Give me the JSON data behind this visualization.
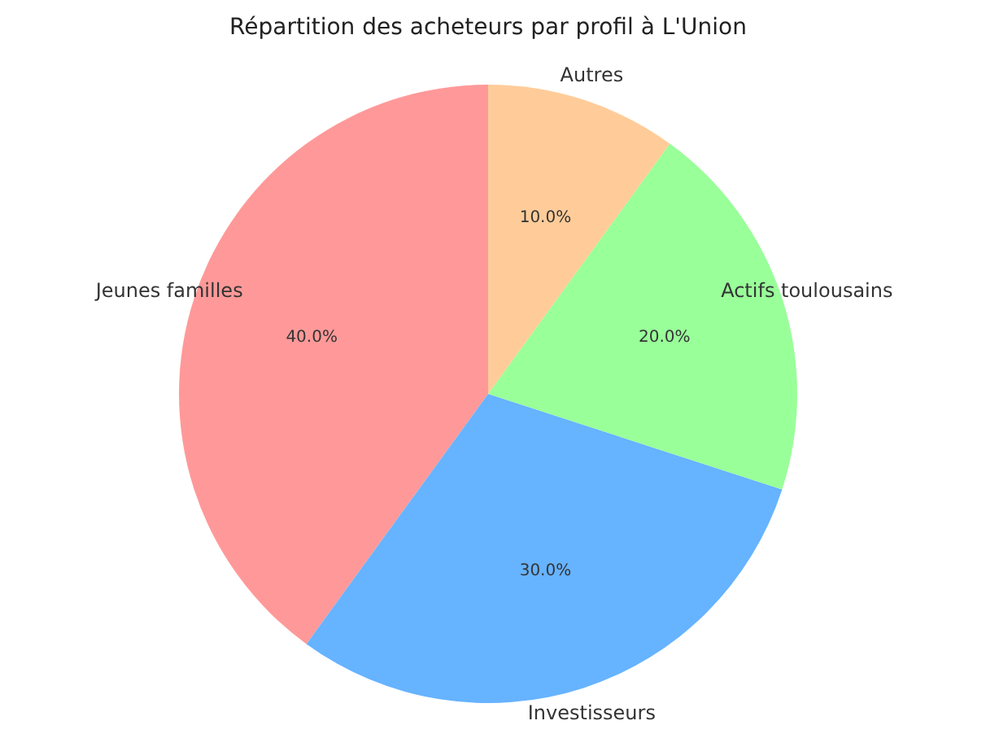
{
  "chart_data": {
    "type": "pie",
    "title": "Répartition des acheteurs par profil à L'Union",
    "categories": [
      "Jeunes familles",
      "Investisseurs",
      "Actifs toulousains",
      "Autres"
    ],
    "values": [
      40,
      30,
      20,
      10
    ],
    "colors": [
      "#ff9999",
      "#66b3ff",
      "#99ff99",
      "#ffcc99"
    ],
    "value_labels": [
      "40.0%",
      "30.0%",
      "20.0%",
      "10.0%"
    ]
  }
}
